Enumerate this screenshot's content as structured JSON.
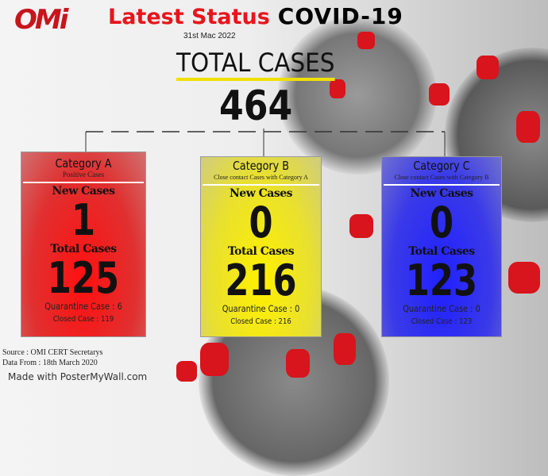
{
  "header": {
    "logo": "OMi",
    "title_red": "Latest Status",
    "title_black": "COVID-19",
    "date": "31st Mac 2022"
  },
  "total": {
    "label": "TOTAL CASES",
    "value": "464"
  },
  "categories": [
    {
      "title": "Category A",
      "subtitle": "Positive Cases",
      "new_label": "New Cases",
      "new_value": "1",
      "total_label": "Total Cases",
      "total_value": "125",
      "quarantine": "Quarantine Case : 6",
      "closed": "Closed Case : 119",
      "color": "#e8141c"
    },
    {
      "title": "Category B",
      "subtitle": "Close contact Cases with Category A",
      "new_label": "New Cases",
      "new_value": "0",
      "total_label": "Total Cases",
      "total_value": "216",
      "quarantine": "Quarantine Case : 0",
      "closed": "Closed Case : 216",
      "color": "#e8e21c"
    },
    {
      "title": "Category C",
      "subtitle": "Close contact Cases with Category B",
      "new_label": "New Cases",
      "new_value": "0",
      "total_label": "Total Cases",
      "total_value": "123",
      "quarantine": "Quarantine Case : 0",
      "closed": "Closed Case : 123",
      "color": "#3a3ae8"
    }
  ],
  "footer": {
    "source": "Source : OMI CERT Secretarys",
    "data_from": "Data From : 18th March 2020",
    "watermark": "Made with PosterMyWall.com"
  }
}
